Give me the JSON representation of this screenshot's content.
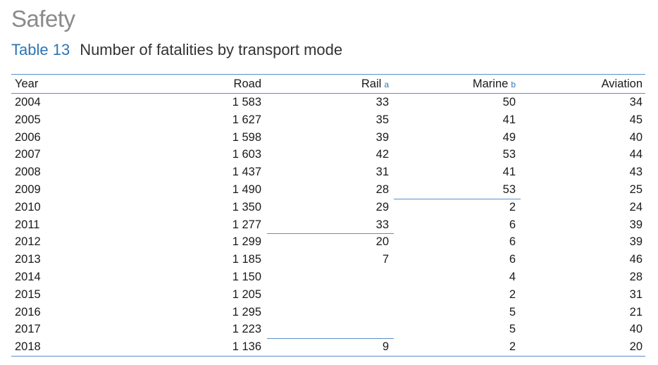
{
  "section_title": "Safety",
  "caption": {
    "label": "Table 13",
    "text": "Number of fatalities by transport mode"
  },
  "columns": {
    "year": "Year",
    "road": "Road",
    "rail": "Rail",
    "rail_note": "a",
    "marine": "Marine",
    "marine_note": "b",
    "aviation": "Aviation"
  },
  "rows": [
    {
      "year": "2004",
      "road": "1 583",
      "rail": "33",
      "marine": "50",
      "aviation": "34"
    },
    {
      "year": "2005",
      "road": "1 627",
      "rail": "35",
      "marine": "41",
      "aviation": "45"
    },
    {
      "year": "2006",
      "road": "1 598",
      "rail": "39",
      "marine": "49",
      "aviation": "40"
    },
    {
      "year": "2007",
      "road": "1 603",
      "rail": "42",
      "marine": "53",
      "aviation": "44"
    },
    {
      "year": "2008",
      "road": "1 437",
      "rail": "31",
      "marine": "41",
      "aviation": "43"
    },
    {
      "year": "2009",
      "road": "1 490",
      "rail": "28",
      "marine": "53",
      "aviation": "25"
    },
    {
      "year": "2010",
      "road": "1 350",
      "rail": "29",
      "marine": "2",
      "aviation": "24"
    },
    {
      "year": "2011",
      "road": "1 277",
      "rail": "33",
      "marine": "6",
      "aviation": "39"
    },
    {
      "year": "2012",
      "road": "1 299",
      "rail": "20",
      "marine": "6",
      "aviation": "39"
    },
    {
      "year": "2013",
      "road": "1 185",
      "rail": "7",
      "marine": "6",
      "aviation": "46"
    },
    {
      "year": "2014",
      "road": "1 150",
      "rail": "",
      "marine": "4",
      "aviation": "28"
    },
    {
      "year": "2015",
      "road": "1 205",
      "rail": "",
      "marine": "2",
      "aviation": "31"
    },
    {
      "year": "2016",
      "road": "1 295",
      "rail": "",
      "marine": "5",
      "aviation": "21"
    },
    {
      "year": "2017",
      "road": "1 223",
      "rail": "",
      "marine": "5",
      "aviation": "40"
    },
    {
      "year": "2018",
      "road": "1 136",
      "rail": "9",
      "marine": "2",
      "aviation": "20"
    }
  ]
}
